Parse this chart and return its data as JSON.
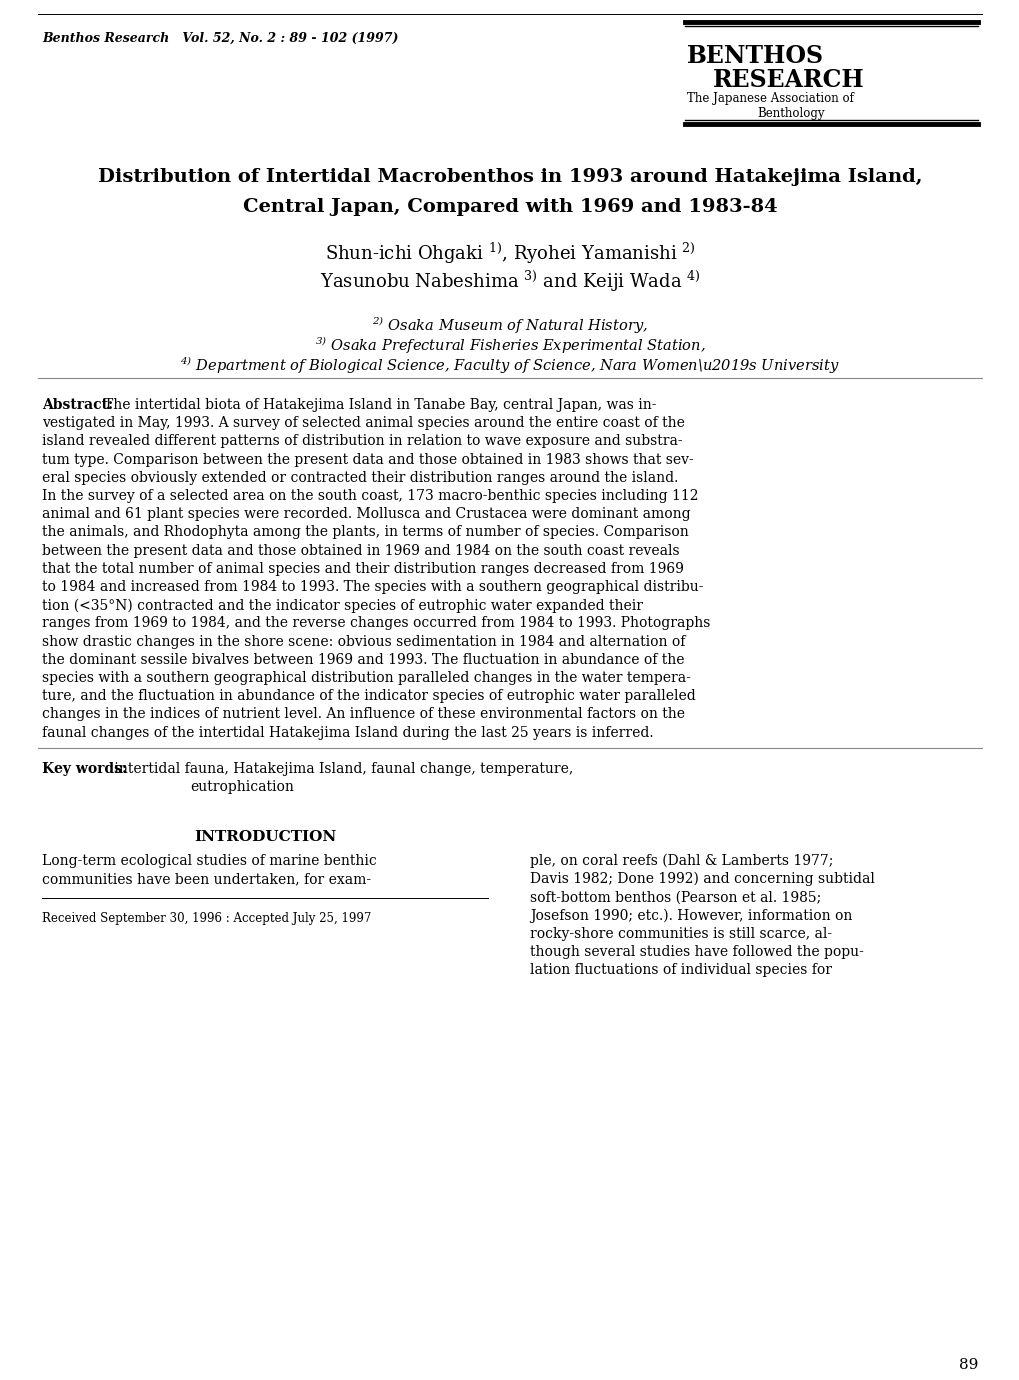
{
  "background_color": "#ffffff",
  "header_journal": "Benthos Research   Vol. 52, No. 2 : 89 - 102 (1997)",
  "logo_title1": "BENTHOS",
  "logo_title2": "RESEARCH",
  "logo_sub1": "The Japanese Association of",
  "logo_sub2": "Benthology",
  "paper_title_line1": "Distribution of Intertidal Macrobenthos in 1993 around Hatakejima Island,",
  "paper_title_line2": "Central Japan, Compared with 1969 and 1983-84",
  "authors_line1_main": "Shun-ichi Ohgaki ",
  "authors_line1_sup1": "1)",
  "authors_line1_mid": ", Ryohei Yamanishi ",
  "authors_line1_sup2": "2)",
  "authors_line2_main": "Yasunobu Nabeshima ",
  "authors_line2_sup3": "3)",
  "authors_line2_mid": " and Keiji Wada ",
  "authors_line2_sup4": "4)",
  "affil1_sup": "2)",
  "affil1_text": " Osaka Museum of Natural History,",
  "affil2_sup": "3)",
  "affil2_text": " Osaka Prefectural Fisheries Experimental Station,",
  "affil3_sup": "4)",
  "affil3_text": " Department of Biological Science, Faculty of Science, Nara Women’s University",
  "abstract_label": "Abstract:",
  "abstract_lines": [
    "The intertidal biota of Hatakejima Island in Tanabe Bay, central Japan, was in-",
    "vestigated in May, 1993. A survey of selected animal species around the entire coast of the",
    "island revealed different patterns of distribution in relation to wave exposure and substra-",
    "tum type. Comparison between the present data and those obtained in 1983 shows that sev-",
    "eral species obviously extended or contracted their distribution ranges around the island.",
    "In the survey of a selected area on the south coast, 173 macro-benthic species including 112",
    "animal and 61 plant species were recorded. Mollusca and Crustacea were dominant among",
    "the animals, and Rhodophyta among the plants, in terms of number of species. Comparison",
    "between the present data and those obtained in 1969 and 1984 on the south coast reveals",
    "that the total number of animal species and their distribution ranges decreased from 1969",
    "to 1984 and increased from 1984 to 1993. The species with a southern geographical distribu-",
    "tion (<35°N) contracted and the indicator species of eutrophic water expanded their",
    "ranges from 1969 to 1984, and the reverse changes occurred from 1984 to 1993. Photographs",
    "show drastic changes in the shore scene: obvious sedimentation in 1984 and alternation of",
    "the dominant sessile bivalves between 1969 and 1993. The fluctuation in abundance of the",
    "species with a southern geographical distribution paralleled changes in the water tempera-",
    "ture, and the fluctuation in abundance of the indicator species of eutrophic water paralleled",
    "changes in the indices of nutrient level. An influence of these environmental factors on the",
    "faunal changes of the intertidal Hatakejima Island during the last 25 years is inferred."
  ],
  "keywords_label": "Key words:",
  "keywords_line1": " intertidal fauna, Hatakejima Island, faunal change, temperature,",
  "keywords_line2": "eutrophication",
  "section_title": "INTRODUCTION",
  "intro_col1_lines": [
    "Long-term ecological studies of marine benthic",
    "communities have been undertaken, for exam-"
  ],
  "intro_col2_lines": [
    "ple, on coral reefs (Dahl & Lamberts 1977;",
    "Davis 1982; Done 1992) and concerning subtidal",
    "soft-bottom benthos (Pearson et al. 1985;",
    "Josefson 1990; etc.). However, information on",
    "rocky-shore communities is still scarce, al-",
    "though several studies have followed the popu-",
    "lation fluctuations of individual species for"
  ],
  "received_text": "Received September 30, 1996 : Accepted July 25, 1997",
  "page_number": "89"
}
